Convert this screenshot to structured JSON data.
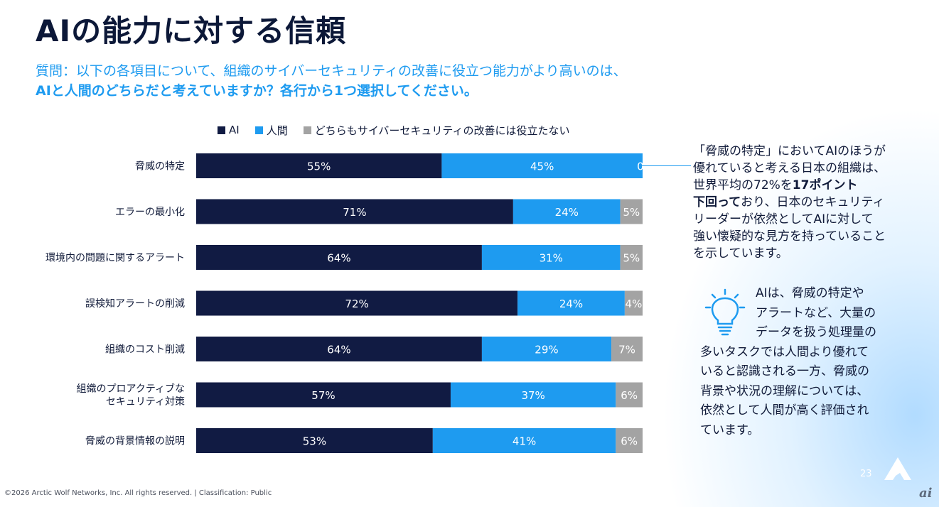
{
  "title": "AIの能力に対する信頼",
  "question": {
    "line1": "質問：以下の各項目について、組織のサイバーセキュリティの改善に役立つ能力がより高いのは、",
    "line2": "AIと人間のどちらだと考えていますか？各行から1つ選択してください。"
  },
  "colors": {
    "ai": "#111b43",
    "human": "#1e9bf0",
    "neither": "#a3a3a3",
    "accent": "#1e9bf0"
  },
  "chart_data": {
    "type": "bar",
    "orientation": "horizontal",
    "stacked": true,
    "percent_stacked": true,
    "legend_position": "top",
    "grid": false,
    "categories": [
      "脅威の特定",
      "エラーの最小化",
      "環境内の問題に関するアラート",
      "誤検知アラートの削減",
      "組織のコスト削減",
      [
        "組織のプロアクティブな",
        "セキュリティ対策"
      ],
      "脅威の背景情報の説明"
    ],
    "series": [
      {
        "name": "AI",
        "values": [
          55,
          71,
          64,
          72,
          64,
          57,
          53
        ],
        "color": "#111b43"
      },
      {
        "name": "人間",
        "values": [
          45,
          24,
          31,
          24,
          29,
          37,
          41
        ],
        "color": "#1e9bf0"
      },
      {
        "name": "どちらもサイバーセキュリティの改善には役立たない",
        "values": [
          0,
          5,
          5,
          4,
          7,
          6,
          6
        ],
        "color": "#a3a3a3"
      }
    ],
    "unit": "%",
    "xlim": [
      0,
      100
    ]
  },
  "note": {
    "line1": "「脅威の特定」においてAIのほうが",
    "line2": "優れていると考える日本の組織は、",
    "line3_pre": "世界平均の72%を",
    "line3_bold": "17ポイント",
    "line4_bold": "下回って",
    "line4_post": "おり、日本のセキュリティ",
    "line5": "リーダーが依然としてAIに対して",
    "line6": "強い懐疑的な見方を持っていること",
    "line7": "を示しています。"
  },
  "tip": {
    "icon": "lightbulb-icon",
    "line1": "AIは、脅威の特定や",
    "line2": "アラートなど、大量の",
    "line3": "データを扱う処理量の",
    "line4": "多いタスクでは人間より優れて",
    "line5": "いると認識される一方、脅威の",
    "line6": "背景や状況の理解については、",
    "line7": "依然として人間が高く評価され",
    "line8": "ています。"
  },
  "page_number": "23",
  "watermark": "ai",
  "footer": "©2026 Arctic Wolf Networks, Inc. All rights reserved. | Classification: Public"
}
